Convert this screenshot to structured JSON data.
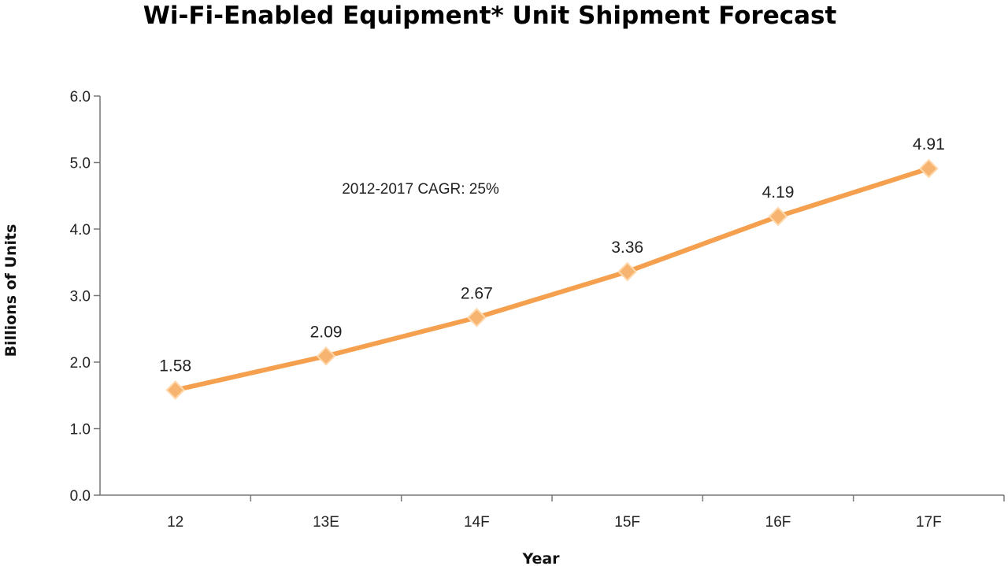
{
  "chart_data": {
    "type": "line",
    "title": "Wi-Fi-Enabled Equipment* Unit Shipment Forecast",
    "xlabel": "Year",
    "ylabel": "Billions of Units",
    "categories": [
      "12",
      "13E",
      "14F",
      "15F",
      "16F",
      "17F"
    ],
    "series": [
      {
        "values": [
          1.58,
          2.09,
          2.67,
          3.36,
          4.19,
          4.91
        ],
        "color": "#f4a04f"
      }
    ],
    "data_labels": [
      "1.58",
      "2.09",
      "2.67",
      "3.36",
      "4.19",
      "4.91"
    ],
    "ylim": [
      0,
      6
    ],
    "yticks": [
      "0.0",
      "1.0",
      "2.0",
      "3.0",
      "4.0",
      "5.0",
      "6.0"
    ],
    "annotation": "2012-2017 CAGR: 25%",
    "grid": false,
    "legend": "none",
    "marker": "diamond-icon"
  }
}
